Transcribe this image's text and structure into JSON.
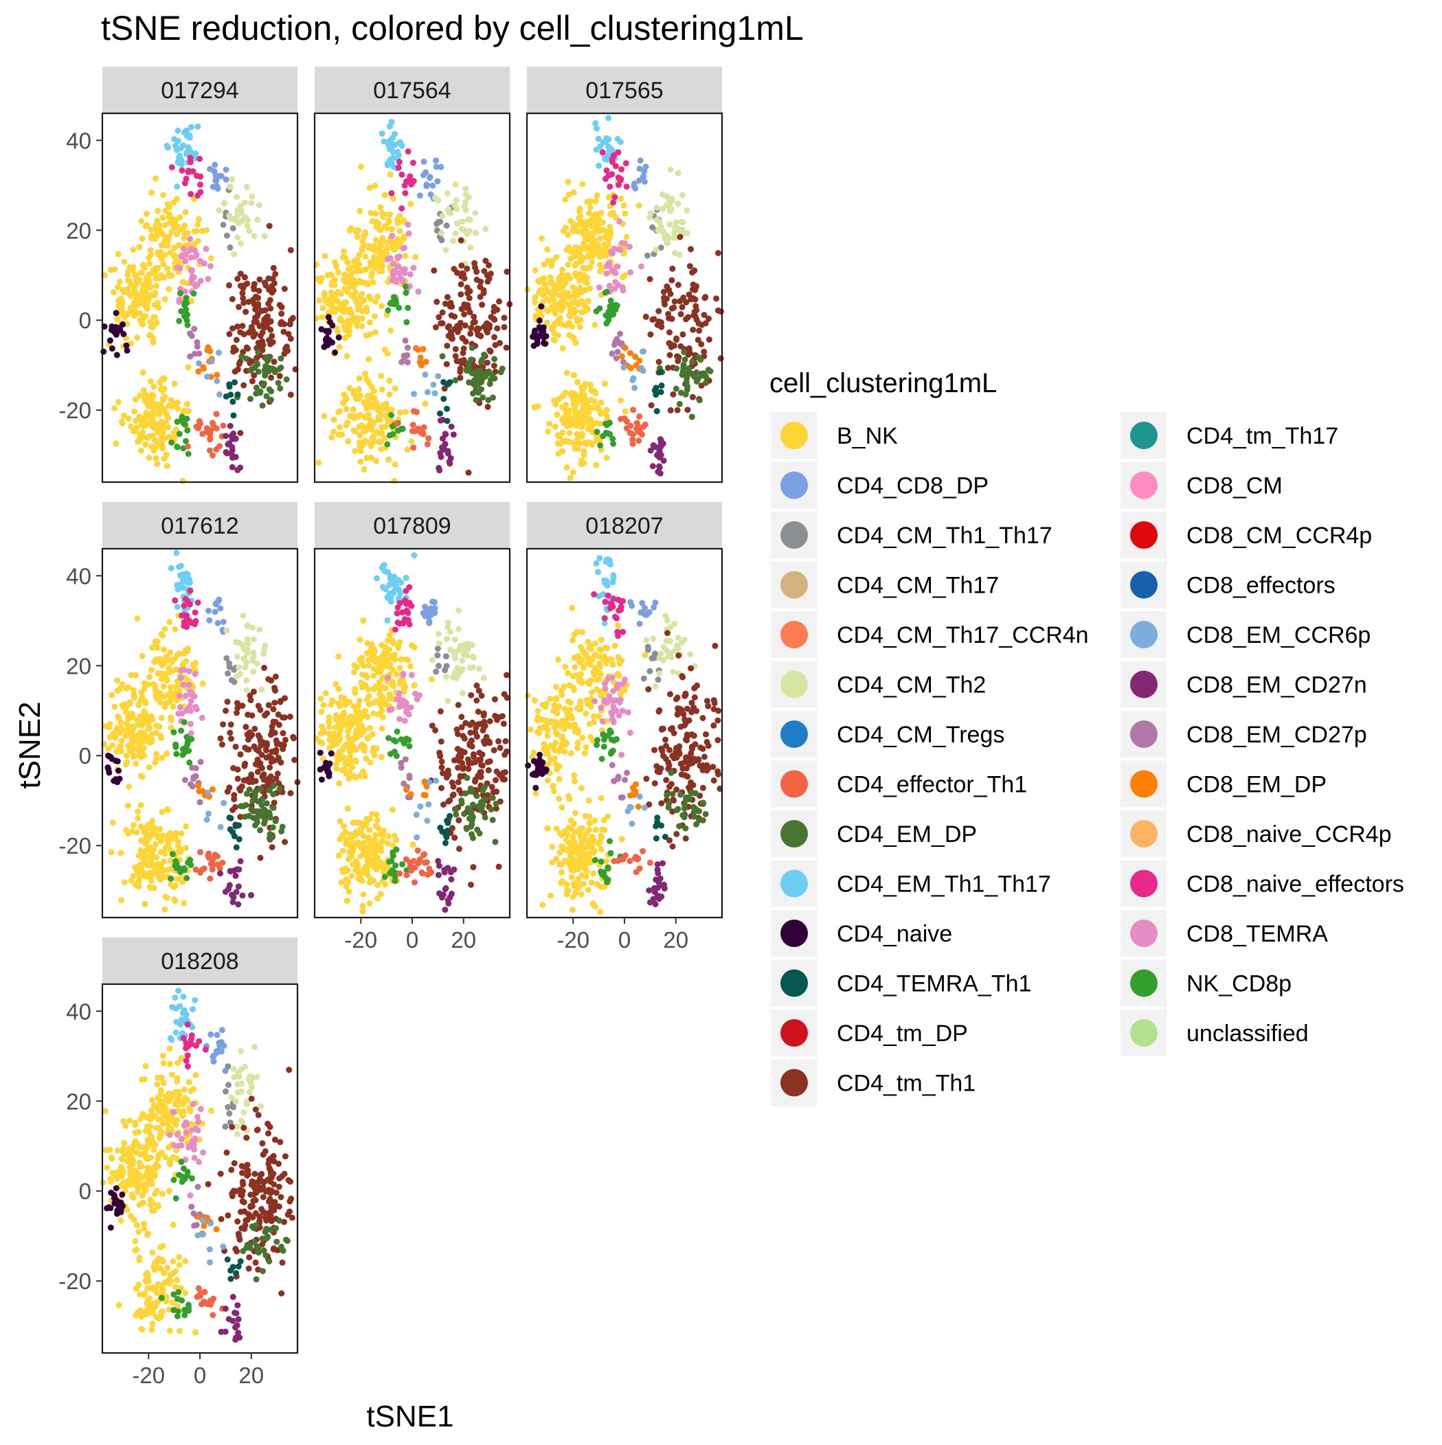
{
  "chart_data": {
    "type": "scatter",
    "title": "tSNE reduction, colored by cell_clustering1mL",
    "xlabel": "tSNE1",
    "ylabel": "tSNE2",
    "xlim": [
      -38,
      38
    ],
    "ylim": [
      -36,
      46
    ],
    "x_ticks": [
      -20,
      0,
      20
    ],
    "y_ticks": [
      -20,
      0,
      20,
      40
    ],
    "facet_variable": "sample",
    "facets": [
      "017294",
      "017564",
      "017565",
      "017612",
      "017809",
      "018207",
      "018208"
    ],
    "facet_layout": "wrap-3-columns",
    "legend": {
      "title": "cell_clustering1mL",
      "placement": "right",
      "columns": 2,
      "entries": [
        {
          "label": "B_NK",
          "color": "#FDD536"
        },
        {
          "label": "CD4_CD8_DP",
          "color": "#7B9FE3"
        },
        {
          "label": "CD4_CM_Th1_Th17",
          "color": "#8B8E92"
        },
        {
          "label": "CD4_CM_Th17",
          "color": "#D4B17F"
        },
        {
          "label": "CD4_CM_Th17_CCR4n",
          "color": "#FC7B50"
        },
        {
          "label": "CD4_CM_Th2",
          "color": "#D7E5A3"
        },
        {
          "label": "CD4_CM_Tregs",
          "color": "#1D7EC6"
        },
        {
          "label": "CD4_effector_Th1",
          "color": "#F36445"
        },
        {
          "label": "CD4_EM_DP",
          "color": "#47752F"
        },
        {
          "label": "CD4_EM_Th1_Th17",
          "color": "#6CCDF5"
        },
        {
          "label": "CD4_naive",
          "color": "#33013A"
        },
        {
          "label": "CD4_TEMRA_Th1",
          "color": "#065750"
        },
        {
          "label": "CD4_tm_DP",
          "color": "#D0121C"
        },
        {
          "label": "CD4_tm_Th1",
          "color": "#8C3222"
        },
        {
          "label": "CD4_tm_Th17",
          "color": "#1D968E"
        },
        {
          "label": "CD8_CM",
          "color": "#FD8CC0"
        },
        {
          "label": "CD8_CM_CCR4p",
          "color": "#E0070C"
        },
        {
          "label": "CD8_effectors",
          "color": "#185FAE"
        },
        {
          "label": "CD8_EM_CCR6p",
          "color": "#7CADDB"
        },
        {
          "label": "CD8_EM_CD27n",
          "color": "#832875"
        },
        {
          "label": "CD8_EM_CD27p",
          "color": "#B277A6"
        },
        {
          "label": "CD8_EM_DP",
          "color": "#FD7F07"
        },
        {
          "label": "CD8_naive_CCR4p",
          "color": "#FDB361"
        },
        {
          "label": "CD8_naive_effectors",
          "color": "#E7298A"
        },
        {
          "label": "CD8_TEMRA",
          "color": "#E68DC5"
        },
        {
          "label": "NK_CD8p",
          "color": "#33A02C"
        },
        {
          "label": "unclassified",
          "color": "#B3E08D"
        }
      ]
    },
    "cluster_centers": [
      {
        "cluster": "B_NK",
        "x": -17,
        "y": -22
      },
      {
        "cluster": "B_NK",
        "x": -12,
        "y": 18
      },
      {
        "cluster": "B_NK",
        "x": -25,
        "y": 5
      },
      {
        "cluster": "CD4_CD8_DP",
        "x": 7,
        "y": 32
      },
      {
        "cluster": "CD4_CM_Th1_Th17",
        "x": 11,
        "y": 21
      },
      {
        "cluster": "CD4_CM_Th2",
        "x": 18,
        "y": 23
      },
      {
        "cluster": "CD4_naive",
        "x": -33,
        "y": -3
      },
      {
        "cluster": "CD4_tm_Th1",
        "x": 24,
        "y": -1
      },
      {
        "cluster": "CD4_EM_DP",
        "x": 25,
        "y": -12
      },
      {
        "cluster": "CD4_EM_Th1_Th17",
        "x": -7,
        "y": 38
      },
      {
        "cluster": "CD8_naive_effectors",
        "x": -4,
        "y": 32
      },
      {
        "cluster": "CD8_TEMRA",
        "x": -4,
        "y": 12
      },
      {
        "cluster": "NK_CD8p",
        "x": -6,
        "y": 3
      },
      {
        "cluster": "NK_CD8p",
        "x": -7,
        "y": -25
      },
      {
        "cluster": "CD4_effector_Th1",
        "x": 3,
        "y": -24
      },
      {
        "cluster": "CD8_EM_CD27n",
        "x": 13,
        "y": -29
      },
      {
        "cluster": "CD8_EM_CD27p",
        "x": -2,
        "y": -6
      },
      {
        "cluster": "CD8_EM_DP",
        "x": 3,
        "y": -8
      },
      {
        "cluster": "CD4_TEMRA_Th1",
        "x": 13,
        "y": -16
      },
      {
        "cluster": "CD8_EM_CCR6p",
        "x": 5,
        "y": -12
      }
    ]
  }
}
